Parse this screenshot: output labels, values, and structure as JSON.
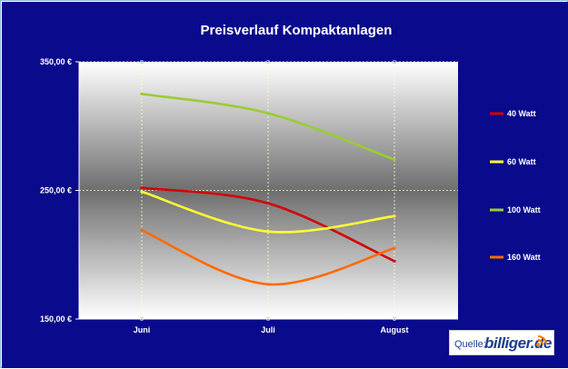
{
  "colors": {
    "background": "#0a0a8c",
    "plot_center": "#6e6e6e",
    "plot_edge": "#ffffff"
  },
  "chart_data": {
    "type": "line",
    "title": "Preisverlauf Kompaktanlagen",
    "categories": [
      "Juni",
      "Juli",
      "August"
    ],
    "ylim": [
      150,
      350
    ],
    "yticks": [
      150,
      250,
      350
    ],
    "ytick_labels": [
      "150,00 €",
      "250,00 €",
      "350,00 €"
    ],
    "grid": true,
    "smooth": true,
    "legend_position": "right",
    "series": [
      {
        "name": "40 Watt",
        "color": "#d40000",
        "values": [
          252,
          240,
          195
        ]
      },
      {
        "name": "60 Watt",
        "color": "#ffff33",
        "values": [
          249,
          218,
          230
        ]
      },
      {
        "name": "100 Watt",
        "color": "#99cc33",
        "values": [
          325,
          310,
          274
        ]
      },
      {
        "name": "160 Watt",
        "color": "#ff6a00",
        "values": [
          219,
          177,
          205
        ]
      }
    ]
  },
  "source": {
    "label": "Quelle:",
    "brand": "billiger.de",
    "icon": "signal-waves-icon"
  }
}
